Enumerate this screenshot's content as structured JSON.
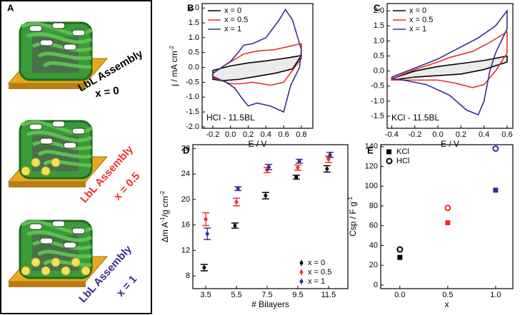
{
  "illustration": {
    "panel": "A",
    "items": [
      {
        "title": "LbL Assembly",
        "caption": "x = 0",
        "color": "#000000"
      },
      {
        "title": "LbL Assembly",
        "caption": "x = 0.5",
        "color": "#e8312a"
      },
      {
        "title": "LbL Assembly",
        "caption": "x = 1",
        "color": "#3b2b8c"
      }
    ]
  },
  "chart_data": [
    {
      "type": "line",
      "panel": "B",
      "xlabel": "E / V",
      "ylabel": [
        "j / mA cm",
        "-2"
      ],
      "annotation": "HCl - 11.5BL",
      "legend": "upper left",
      "xlim": [
        -0.32,
        0.93
      ],
      "ylim": [
        -2.05,
        2.15
      ],
      "xticks": [
        -0.2,
        {
          "value": 0,
          "label": "0.0"
        },
        0.2,
        0.4,
        0.6,
        0.8
      ],
      "yticks": [
        {
          "value": -2,
          "label": "-2.0"
        },
        -1.5,
        {
          "value": -1,
          "label": "-1.0"
        },
        -0.5,
        {
          "value": 0,
          "label": "0.0"
        },
        0.5,
        {
          "value": 1,
          "label": "1.0"
        },
        1.5,
        {
          "value": 2,
          "label": "2.0"
        }
      ],
      "series": [
        {
          "name": "x = 0",
          "color": "#000000",
          "x": [
            -0.2,
            0.0,
            0.2,
            0.4,
            0.6,
            0.8,
            0.7,
            0.5,
            0.3,
            0.1,
            -0.1,
            -0.2,
            -0.2
          ],
          "values": [
            -0.1,
            0.05,
            0.15,
            0.22,
            0.3,
            0.4,
            -0.05,
            -0.2,
            -0.3,
            -0.4,
            -0.45,
            -0.4,
            -0.1
          ]
        },
        {
          "name": "x = 0.5",
          "color": "#e8312a",
          "x": [
            -0.2,
            -0.05,
            0.15,
            0.3,
            0.5,
            0.65,
            0.8,
            0.8,
            0.7,
            0.6,
            0.45,
            0.25,
            0.12,
            0.0,
            -0.2,
            -0.2
          ],
          "values": [
            -0.2,
            0.1,
            0.45,
            0.55,
            0.6,
            0.7,
            0.8,
            0.3,
            -0.1,
            -0.5,
            -0.6,
            -0.5,
            -0.55,
            -0.55,
            -0.35,
            -0.2
          ]
        },
        {
          "name": "x = 1",
          "color": "#3b2b8c",
          "x": [
            -0.2,
            0.0,
            0.1,
            0.15,
            0.25,
            0.4,
            0.55,
            0.62,
            0.7,
            0.8,
            0.78,
            0.68,
            0.6,
            0.45,
            0.3,
            0.2,
            0.12,
            0.05,
            -0.05,
            -0.2,
            -0.2
          ],
          "values": [
            -0.2,
            0.2,
            0.55,
            0.75,
            0.8,
            1.0,
            1.6,
            1.95,
            1.6,
            0.6,
            0.0,
            -0.6,
            -1.5,
            -1.3,
            -1.2,
            -1.3,
            -1.0,
            -0.7,
            -0.5,
            -0.3,
            -0.2
          ]
        }
      ]
    },
    {
      "type": "line",
      "panel": "C",
      "xlabel": "E / V",
      "annotation": "KCl - 11.5BL",
      "legend": "upper left",
      "xlim": [
        -0.44,
        0.65
      ],
      "ylim": [
        -1.9,
        2.24
      ],
      "xticks": [
        -0.4,
        -0.2,
        {
          "value": 0,
          "label": "0.0"
        },
        0.2,
        0.4,
        0.6
      ],
      "yticks": [
        -1.5,
        {
          "value": -1,
          "label": "-1.0"
        },
        -0.5,
        {
          "value": 0,
          "label": "0.0"
        },
        0.5,
        {
          "value": 1,
          "label": "1.0"
        },
        1.5,
        {
          "value": 2,
          "label": "2.0"
        }
      ],
      "series": [
        {
          "name": "x = 0",
          "color": "#000000",
          "x": [
            -0.4,
            -0.2,
            0.0,
            0.2,
            0.4,
            0.6,
            0.6,
            0.4,
            0.2,
            0.0,
            -0.2,
            -0.4,
            -0.4
          ],
          "values": [
            -0.25,
            0.0,
            0.15,
            0.25,
            0.35,
            0.5,
            0.3,
            0.05,
            -0.1,
            -0.15,
            -0.2,
            -0.3,
            -0.25
          ]
        },
        {
          "name": "x = 0.5",
          "color": "#e8312a",
          "x": [
            -0.4,
            -0.2,
            0.0,
            0.1,
            0.3,
            0.45,
            0.6,
            0.6,
            0.5,
            0.4,
            0.3,
            0.15,
            0.0,
            -0.2,
            -0.4,
            -0.4
          ],
          "values": [
            -0.25,
            0.05,
            0.3,
            0.45,
            0.65,
            0.95,
            1.3,
            0.6,
            0.0,
            -0.45,
            -0.55,
            -0.4,
            -0.3,
            -0.3,
            -0.3,
            -0.25
          ]
        },
        {
          "name": "x = 1",
          "color": "#3b2b8c",
          "x": [
            -0.4,
            -0.2,
            0.0,
            0.1,
            0.2,
            0.35,
            0.5,
            0.6,
            0.6,
            0.5,
            0.45,
            0.4,
            0.35,
            0.25,
            0.1,
            -0.1,
            -0.3,
            -0.4,
            -0.4
          ],
          "values": [
            -0.2,
            0.1,
            0.4,
            0.6,
            0.8,
            1.1,
            1.5,
            2.0,
            1.4,
            0.6,
            0.0,
            -1.0,
            -1.45,
            -1.3,
            -0.8,
            -0.45,
            -0.3,
            -0.25,
            -0.2
          ]
        }
      ]
    },
    {
      "type": "errorbar",
      "panel": "D",
      "xlabel": "# Bilayers",
      "ylabel": [
        "Δm A",
        "-1",
        "/g cm",
        "-2"
      ],
      "legend": "lower right",
      "x": [
        3.5,
        5.5,
        7.5,
        9.5,
        11.5
      ],
      "xlim": [
        2.66,
        12.76
      ],
      "ylim": [
        6,
        28.6
      ],
      "xticks": [
        3.5,
        5.5,
        7.5,
        9.5,
        11.5
      ],
      "yticks": [
        8,
        12,
        16,
        20,
        24,
        28
      ],
      "series": [
        {
          "name": "x = 0",
          "color": "#000000",
          "offset": -0.05,
          "values": [
            9.3,
            15.9,
            20.6,
            23.5,
            24.8
          ],
          "errors": [
            0.5,
            0.4,
            0.5,
            0.3,
            0.5
          ]
        },
        {
          "name": "x = 0.5",
          "color": "#e8312a",
          "offset": 0,
          "values": [
            16.9,
            19.6,
            24.6,
            25.0,
            26.3
          ],
          "errors": [
            1.0,
            0.6,
            0.4,
            0.4,
            0.5
          ]
        },
        {
          "name": "x = 1",
          "color": "#3b2b8c",
          "offset": 0.05,
          "values": [
            14.6,
            21.7,
            25.1,
            26.0,
            27.0
          ],
          "errors": [
            0.9,
            0.3,
            0.4,
            0.3,
            0.4
          ]
        }
      ]
    },
    {
      "type": "scatter",
      "panel": "E",
      "xlabel": "x",
      "ylabel": [
        "Csp / F g",
        "-1"
      ],
      "legend": "upper left",
      "x": [
        0,
        0.5,
        1
      ],
      "xlim": [
        -0.2,
        1.18
      ],
      "ylim": [
        -3.6,
        142
      ],
      "xticks": [
        {
          "value": 0,
          "label": "0.0"
        },
        0.5,
        {
          "value": 1,
          "label": "1.0"
        }
      ],
      "yticks": [
        0,
        20,
        40,
        60,
        80,
        100,
        120,
        140
      ],
      "series": [
        {
          "name": "KCl",
          "marker": "square",
          "color_by_point": [
            "#000000",
            "#e8312a",
            "#3b2b8c"
          ],
          "values": [
            28,
            63,
            96
          ]
        },
        {
          "name": "HCl",
          "marker": "open-circle",
          "color_by_point": [
            "#000000",
            "#e8312a",
            "#3b2b8c"
          ],
          "values": [
            36,
            78,
            138
          ]
        }
      ]
    }
  ]
}
